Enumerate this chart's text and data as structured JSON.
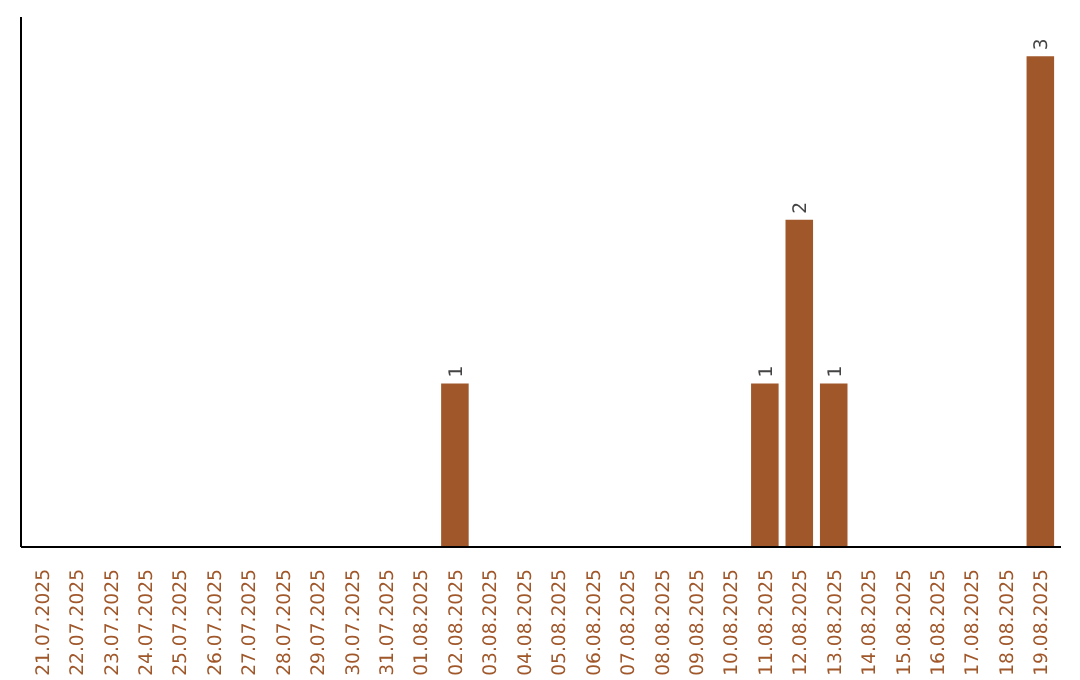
{
  "chart_data": {
    "type": "bar",
    "categories": [
      "21.07.2025",
      "22.07.2025",
      "23.07.2025",
      "24.07.2025",
      "25.07.2025",
      "26.07.2025",
      "27.07.2025",
      "28.07.2025",
      "29.07.2025",
      "30.07.2025",
      "31.07.2025",
      "01.08.2025",
      "02.08.2025",
      "03.08.2025",
      "04.08.2025",
      "05.08.2025",
      "06.08.2025",
      "07.08.2025",
      "08.08.2025",
      "09.08.2025",
      "10.08.2025",
      "11.08.2025",
      "12.08.2025",
      "13.08.2025",
      "14.08.2025",
      "15.08.2025",
      "16.08.2025",
      "17.08.2025",
      "18.08.2025",
      "19.08.2025"
    ],
    "values": [
      null,
      null,
      null,
      null,
      null,
      null,
      null,
      null,
      null,
      null,
      null,
      null,
      1,
      null,
      null,
      null,
      null,
      null,
      null,
      null,
      null,
      1,
      2,
      1,
      null,
      null,
      null,
      null,
      null,
      3
    ],
    "color": "#a0572a",
    "grid": false,
    "data_labels": true,
    "tick_labels": "x"
  }
}
